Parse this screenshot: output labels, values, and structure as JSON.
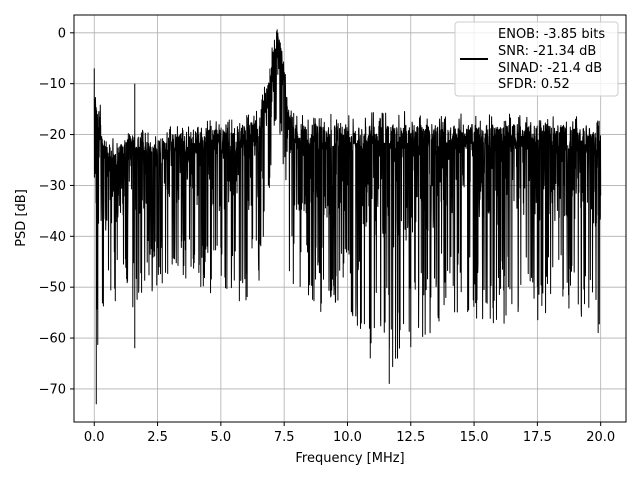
{
  "chart_data": {
    "type": "line",
    "xlabel": "Frequency [MHz]",
    "ylabel": "PSD [dB]",
    "xlim": [
      -0.8,
      21.0
    ],
    "ylim": [
      -76.5,
      3.5
    ],
    "xticks": [
      0.0,
      2.5,
      5.0,
      7.5,
      10.0,
      12.5,
      15.0,
      17.5,
      20.0
    ],
    "xtick_labels": [
      "0.0",
      "2.5",
      "5.0",
      "7.5",
      "10.0",
      "12.5",
      "15.0",
      "17.5",
      "20.0"
    ],
    "yticks": [
      0,
      -10,
      -20,
      -30,
      -40,
      -50,
      -60,
      -70
    ],
    "ytick_labels": [
      "0",
      "−10",
      "−20",
      "−30",
      "−40",
      "−50",
      "−60",
      "−70"
    ],
    "grid": true,
    "legend_position": "top-right",
    "line_color": "#000000",
    "series": [
      {
        "name": "ENOB: -3.85 bits SNR: -21.34 dB SINAD: -21.4 dB SFDR: 0.52",
        "legend_lines": [
          "ENOB: -3.85 bits",
          "SNR: -21.34 dB",
          "SINAD: -21.4 dB",
          "SFDR: 0.52"
        ],
        "description": "Dense noise-like PSD between roughly -20 and -45 dB with a signal peak near 7.2 MHz reaching about 0 dB",
        "envelope": {
          "x": [
            0.0,
            0.1,
            0.5,
            1.0,
            1.5,
            2.0,
            2.5,
            3.0,
            4.0,
            5.0,
            6.0,
            6.5,
            6.9,
            7.1,
            7.3,
            7.5,
            7.7,
            8.0,
            9.0,
            10.0,
            12.0,
            14.0,
            16.0,
            18.0,
            20.0
          ],
          "upper": [
            -7,
            -14,
            -22,
            -22,
            -20,
            -21,
            -21,
            -20,
            -19,
            -19,
            -18,
            -17,
            -8,
            -1,
            0,
            -5,
            -16,
            -18,
            -18,
            -18,
            -18,
            -18,
            -18,
            -18,
            -19
          ],
          "lower": [
            -48,
            -72,
            -55,
            -52,
            -55,
            -52,
            -50,
            -48,
            -50,
            -52,
            -53,
            -50,
            -40,
            -25,
            -20,
            -28,
            -48,
            -52,
            -55,
            -55,
            -68,
            -55,
            -58,
            -56,
            -58
          ]
        },
        "notable_points": [
          {
            "x": 0.0,
            "y": -7
          },
          {
            "x": 0.08,
            "y": -73
          },
          {
            "x": 1.6,
            "y": -10
          },
          {
            "x": 1.6,
            "y": -62
          },
          {
            "x": 7.25,
            "y": 0
          },
          {
            "x": 10.9,
            "y": -64
          },
          {
            "x": 11.65,
            "y": -69
          },
          {
            "x": 19.9,
            "y": -59
          }
        ]
      }
    ]
  }
}
